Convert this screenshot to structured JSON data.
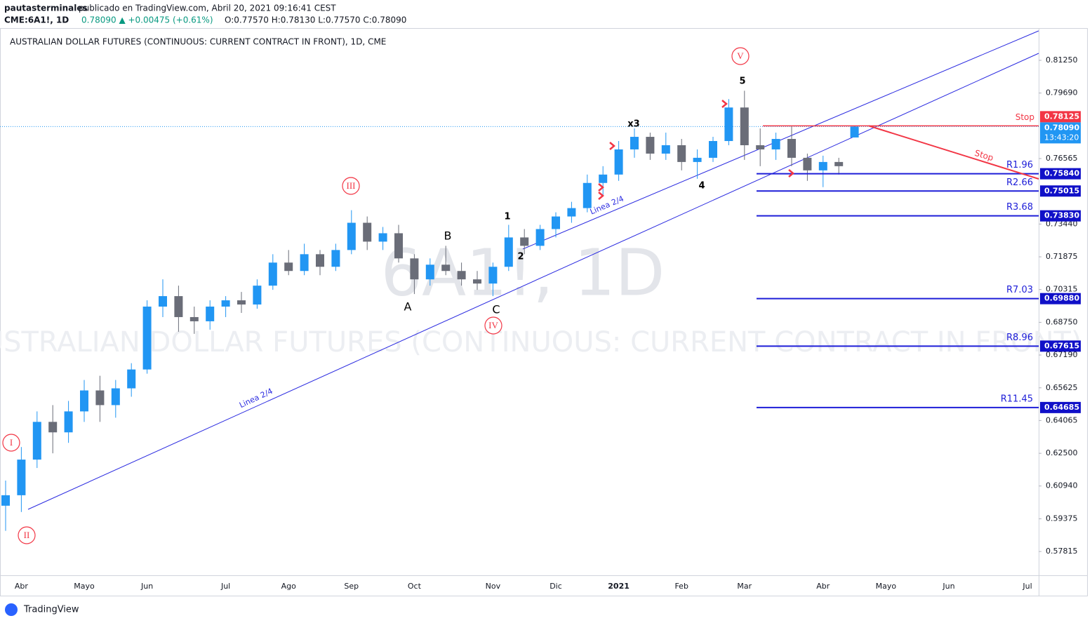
{
  "chart_data": {
    "type": "candlestick",
    "header": {
      "user": "pautasterminales",
      "published": "publicado en TradingView.com, Abril 20, 2021 09:16:41 CEST",
      "symbol": "CME:6A1!, 1D",
      "change": "0.78090 ▲ +0.00475 (+0.61%)",
      "ohlc": "O:0.77570 H:0.78130 L:0.77570 C:0.78090"
    },
    "title": "AUSTRALIAN DOLLAR FUTURES (CONTINUOUS: CURRENT CONTRACT IN FRONT), 1D, CME",
    "watermark": "6A1!, 1D",
    "watermark_name": "AUSTRALIAN DOLLAR FUTURES (CONTINUOUS: CURRENT CONTRACT IN FRONT)",
    "categories": [
      null,
      "Abr",
      null,
      null,
      null,
      "Mayo",
      null,
      null,
      null,
      "Jun",
      null,
      null,
      null,
      null,
      "Jul",
      null,
      null,
      null,
      "Ago",
      null,
      null,
      null,
      "Sep",
      null,
      null,
      null,
      "Oct",
      null,
      null,
      null,
      null,
      "Nov",
      null,
      null,
      null,
      "Dic",
      null,
      null,
      null,
      "2021",
      null,
      null,
      null,
      "Feb",
      null,
      null,
      null,
      "Mar",
      null,
      null,
      null,
      null,
      "Abr",
      null,
      null,
      null,
      "Mayo",
      null,
      null,
      null,
      "Jun",
      null,
      null,
      null,
      null,
      "Jul"
    ],
    "open": [
      0.6,
      0.605,
      0.622,
      0.64,
      0.635,
      0.645,
      0.655,
      0.648,
      0.656,
      0.665,
      0.695,
      0.7,
      0.69,
      0.688,
      0.695,
      0.698,
      0.696,
      0.705,
      0.716,
      0.712,
      0.72,
      0.714,
      0.722,
      0.735,
      0.726,
      0.73,
      0.718,
      0.708,
      0.715,
      0.712,
      0.708,
      0.706,
      0.714,
      0.728,
      0.724,
      0.732,
      0.738,
      0.742,
      0.754,
      0.758,
      0.77,
      0.776,
      0.768,
      0.772,
      0.764,
      0.766,
      0.774,
      0.79,
      0.772,
      0.77,
      0.775,
      0.766,
      0.76,
      0.764,
      0.7757,
      null,
      null,
      null,
      null,
      null,
      null,
      null,
      null,
      null,
      null,
      null
    ],
    "high": [
      0.612,
      0.628,
      0.645,
      0.648,
      0.65,
      0.66,
      0.662,
      0.66,
      0.668,
      0.698,
      0.708,
      0.705,
      0.695,
      0.698,
      0.7,
      0.702,
      0.708,
      0.72,
      0.722,
      0.725,
      0.722,
      0.725,
      0.741,
      0.738,
      0.733,
      0.734,
      0.72,
      0.718,
      0.724,
      0.716,
      0.712,
      0.716,
      0.734,
      0.732,
      0.734,
      0.74,
      0.745,
      0.758,
      0.762,
      0.774,
      0.78,
      0.778,
      0.778,
      0.775,
      0.77,
      0.776,
      0.794,
      0.798,
      0.78,
      0.778,
      0.781,
      0.768,
      0.767,
      0.766,
      0.7813,
      null,
      null,
      null,
      null,
      null,
      null,
      null,
      null,
      null,
      null,
      null
    ],
    "low": [
      0.588,
      0.597,
      0.618,
      0.625,
      0.63,
      0.64,
      0.64,
      0.642,
      0.652,
      0.663,
      0.69,
      0.683,
      0.682,
      0.684,
      0.69,
      0.692,
      0.694,
      0.703,
      0.71,
      0.71,
      0.71,
      0.712,
      0.72,
      0.722,
      0.722,
      0.716,
      0.701,
      0.705,
      0.71,
      0.705,
      0.703,
      0.7,
      0.712,
      0.72,
      0.722,
      0.728,
      0.735,
      0.74,
      0.748,
      0.755,
      0.766,
      0.765,
      0.765,
      0.76,
      0.756,
      0.764,
      0.772,
      0.765,
      0.762,
      0.765,
      0.762,
      0.755,
      0.752,
      0.758,
      0.7757,
      null,
      null,
      null,
      null,
      null,
      null,
      null,
      null,
      null,
      null,
      null
    ],
    "close": [
      0.605,
      0.622,
      0.64,
      0.635,
      0.645,
      0.655,
      0.648,
      0.656,
      0.665,
      0.695,
      0.7,
      0.69,
      0.688,
      0.695,
      0.698,
      0.696,
      0.705,
      0.716,
      0.712,
      0.72,
      0.714,
      0.722,
      0.735,
      0.726,
      0.73,
      0.718,
      0.708,
      0.715,
      0.712,
      0.708,
      0.706,
      0.714,
      0.728,
      0.724,
      0.732,
      0.738,
      0.742,
      0.754,
      0.758,
      0.77,
      0.776,
      0.768,
      0.772,
      0.764,
      0.766,
      0.774,
      0.79,
      0.772,
      0.77,
      0.775,
      0.766,
      0.76,
      0.764,
      0.762,
      0.7809,
      null,
      null,
      null,
      null,
      null,
      null,
      null,
      null,
      null,
      null,
      null
    ],
    "up_color": "#2196f3",
    "down_color": "#6a6d78",
    "ylim": [
      0.5668,
      0.8279
    ],
    "yticks": [
      {
        "value": 0.8125,
        "label": "0.81250"
      },
      {
        "value": 0.7969,
        "label": "0.79690"
      },
      {
        "value": 0.76565,
        "label": "0.76565"
      },
      {
        "value": 0.7344,
        "label": "0.73440"
      },
      {
        "value": 0.71875,
        "label": "0.71875"
      },
      {
        "value": 0.70315,
        "label": "0.70315"
      },
      {
        "value": 0.6875,
        "label": "0.68750"
      },
      {
        "value": 0.6719,
        "label": "0.67190"
      },
      {
        "value": 0.65625,
        "label": "0.65625"
      },
      {
        "value": 0.64065,
        "label": "0.64065"
      },
      {
        "value": 0.625,
        "label": "0.62500"
      },
      {
        "value": 0.6094,
        "label": "0.60940"
      },
      {
        "value": 0.59375,
        "label": "0.59375"
      },
      {
        "value": 0.57815,
        "label": "0.57815"
      }
    ],
    "last_price": 0.7809,
    "last_price_label": "0.78090",
    "countdown": "13:43:20",
    "stop": {
      "name": "Stop",
      "value": 0.78125,
      "value_label": "0.78125",
      "line_label": "Stop"
    },
    "levels": {
      "names": [
        "R1.96",
        "R2.66",
        "R3.68",
        "R7.03",
        "R8.96",
        "R11.45"
      ],
      "values": [
        0.7584,
        0.75015,
        0.7383,
        0.6988,
        0.67615,
        0.64685
      ],
      "value_labels": [
        "0.75840",
        "0.75015",
        "0.73830",
        "0.69880",
        "0.67615",
        "0.64685"
      ],
      "color": "#1e1ed8"
    },
    "wave_labels": [
      "I",
      "II",
      "III",
      "IV",
      "V"
    ],
    "count_labels": [
      "A",
      "B",
      "C",
      "1",
      "2",
      "x3",
      "4",
      "5"
    ],
    "trend_label": "Linea 2/4",
    "footer": "TradingView"
  }
}
